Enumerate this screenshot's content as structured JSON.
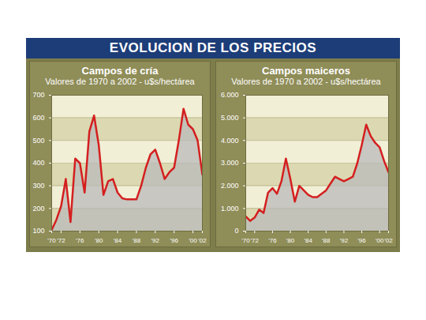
{
  "title": "EVOLUCION DE LOS PRECIOS",
  "chart_data": [
    {
      "type": "line",
      "title": "Campos de cría",
      "subtitle": "Valores de 1970 a 2002 - u$s/hectárea",
      "x": [
        1970,
        1971,
        1972,
        1973,
        1974,
        1975,
        1976,
        1977,
        1978,
        1979,
        1980,
        1981,
        1982,
        1983,
        1984,
        1985,
        1986,
        1987,
        1988,
        1989,
        1990,
        1991,
        1992,
        1993,
        1994,
        1995,
        1996,
        1997,
        1998,
        1999,
        2000,
        2001,
        2002
      ],
      "values": [
        105,
        150,
        210,
        330,
        140,
        420,
        400,
        270,
        540,
        610,
        480,
        260,
        320,
        330,
        270,
        245,
        240,
        240,
        240,
        300,
        380,
        440,
        460,
        400,
        330,
        360,
        380,
        500,
        640,
        570,
        550,
        500,
        350
      ],
      "color": "#d41f1f",
      "xlim": [
        1970,
        2002
      ],
      "xticks": [
        {
          "value": 1970,
          "label": "'70"
        },
        {
          "value": 1972,
          "label": "'72"
        },
        {
          "value": 1976,
          "label": "'76"
        },
        {
          "value": 1980,
          "label": "'80"
        },
        {
          "value": 1984,
          "label": "'84"
        },
        {
          "value": 1988,
          "label": "'88"
        },
        {
          "value": 1992,
          "label": "'92"
        },
        {
          "value": 1996,
          "label": "'96"
        },
        {
          "value": 2000,
          "label": "'00"
        },
        {
          "value": 2002,
          "label": "'02"
        }
      ],
      "ylim": [
        100,
        700
      ],
      "yticks": [
        100,
        200,
        300,
        400,
        500,
        600,
        700
      ],
      "grid": true
    },
    {
      "type": "line",
      "title": "Campos maiceros",
      "subtitle": "Valores de 1970 a 2002 - u$s/hectárea",
      "x": [
        1970,
        1971,
        1972,
        1973,
        1974,
        1975,
        1976,
        1977,
        1978,
        1979,
        1980,
        1981,
        1982,
        1983,
        1984,
        1985,
        1986,
        1987,
        1988,
        1989,
        1990,
        1991,
        1992,
        1993,
        1994,
        1995,
        1996,
        1997,
        1998,
        1999,
        2000,
        2001,
        2002
      ],
      "values": [
        650,
        450,
        600,
        950,
        800,
        1700,
        1900,
        1650,
        2200,
        3200,
        2300,
        1300,
        2000,
        1800,
        1600,
        1500,
        1500,
        1650,
        1800,
        2100,
        2400,
        2300,
        2200,
        2300,
        2400,
        3000,
        3800,
        4700,
        4200,
        3900,
        3700,
        3100,
        2600
      ],
      "color": "#d41f1f",
      "xlim": [
        1970,
        2002
      ],
      "xticks": [
        {
          "value": 1970,
          "label": "'70"
        },
        {
          "value": 1972,
          "label": "'72"
        },
        {
          "value": 1976,
          "label": "'76"
        },
        {
          "value": 1980,
          "label": "'80"
        },
        {
          "value": 1984,
          "label": "'84"
        },
        {
          "value": 1988,
          "label": "'88"
        },
        {
          "value": 1992,
          "label": "'92"
        },
        {
          "value": 1996,
          "label": "'96"
        },
        {
          "value": 2000,
          "label": "'00"
        },
        {
          "value": 2002,
          "label": "'02"
        }
      ],
      "ylim": [
        0,
        6000
      ],
      "yticks": [
        0,
        {
          "value": 1000,
          "label": "1.000"
        },
        {
          "value": 2000,
          "label": "2.000"
        },
        {
          "value": 3000,
          "label": "3.000"
        },
        {
          "value": 4000,
          "label": "4.000"
        },
        {
          "value": 5000,
          "label": "5.000"
        },
        {
          "value": 6000,
          "label": "6.000"
        }
      ],
      "grid": true
    }
  ]
}
